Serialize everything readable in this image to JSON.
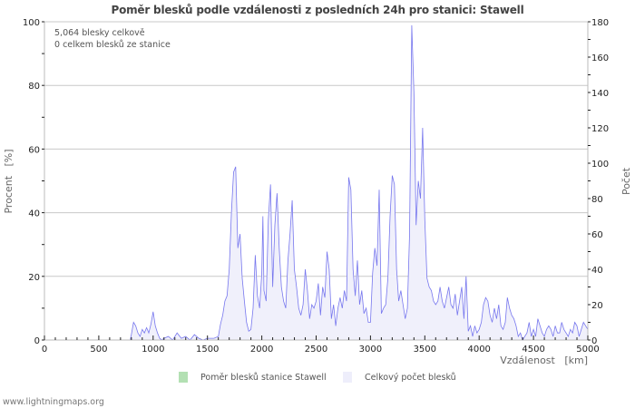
{
  "title": "Poměr blesků podle vzdálenosti z posledních 24h pro stanici: Stawell",
  "info": {
    "line1": "5,064 blesky celkově",
    "line2": "0 celkem blesků ze stanice"
  },
  "legend": {
    "ratio_label": "Poměr blesků stanice Stawell",
    "ratio_color": "#b3e0b3",
    "total_label": "Celkový počet blesků",
    "total_color": "#eeeefb"
  },
  "footer": "www.lightningmaps.org",
  "colors": {
    "line": "#7777ee",
    "fill": "#f0f0fb",
    "grid": "#c8c8c8",
    "axis": "#bbbbbb"
  },
  "chart_data": {
    "type": "area",
    "title": "Poměr blesků podle vzdálenosti z posledních 24h pro stanici: Stawell",
    "xlabel": "Vzdálenost   [km]",
    "ylabel_left": "Procent   [%]",
    "ylabel_right": "Počet",
    "xlim": [
      0,
      5000
    ],
    "ylim_left": [
      0,
      100
    ],
    "ylim_right": [
      0,
      180
    ],
    "x_ticks": [
      0,
      500,
      1000,
      1500,
      2000,
      2500,
      3000,
      3500,
      4000,
      4500,
      5000
    ],
    "y_ticks_left": [
      0,
      20,
      40,
      60,
      80,
      100
    ],
    "y_ticks_right": [
      0,
      20,
      40,
      60,
      80,
      100,
      120,
      140,
      160,
      180
    ],
    "grid": true,
    "legend_position": "bottom",
    "series": [
      {
        "name": "Poměr blesků stanice Stawell",
        "axis": "left",
        "note": "0 strikes from station; ratio 0 across all distances",
        "x": [
          0,
          5000
        ],
        "values": [
          0,
          0
        ]
      },
      {
        "name": "Celkový počet blesků",
        "axis": "right",
        "x": [
          0,
          790,
          800,
          820,
          840,
          860,
          880,
          900,
          920,
          940,
          960,
          980,
          1000,
          1020,
          1040,
          1060,
          1080,
          1100,
          1140,
          1180,
          1220,
          1260,
          1300,
          1340,
          1380,
          1420,
          1460,
          1500,
          1560,
          1600,
          1620,
          1640,
          1660,
          1680,
          1700,
          1720,
          1740,
          1760,
          1780,
          1800,
          1820,
          1840,
          1860,
          1880,
          1900,
          1920,
          1940,
          1960,
          1980,
          2000,
          2010,
          2020,
          2040,
          2060,
          2080,
          2100,
          2120,
          2140,
          2160,
          2180,
          2200,
          2220,
          2240,
          2260,
          2280,
          2300,
          2320,
          2340,
          2360,
          2380,
          2400,
          2420,
          2440,
          2460,
          2480,
          2500,
          2520,
          2540,
          2560,
          2580,
          2600,
          2620,
          2640,
          2660,
          2680,
          2700,
          2720,
          2740,
          2760,
          2780,
          2800,
          2820,
          2840,
          2860,
          2880,
          2900,
          2920,
          2940,
          2960,
          2980,
          3000,
          3020,
          3040,
          3060,
          3080,
          3100,
          3120,
          3140,
          3160,
          3180,
          3200,
          3220,
          3240,
          3260,
          3280,
          3300,
          3320,
          3340,
          3360,
          3380,
          3400,
          3420,
          3440,
          3460,
          3480,
          3500,
          3520,
          3540,
          3560,
          3580,
          3600,
          3620,
          3640,
          3660,
          3680,
          3700,
          3720,
          3740,
          3760,
          3780,
          3800,
          3820,
          3840,
          3860,
          3880,
          3900,
          3920,
          3940,
          3960,
          3980,
          4000,
          4020,
          4040,
          4060,
          4080,
          4100,
          4120,
          4140,
          4160,
          4180,
          4200,
          4220,
          4240,
          4260,
          4280,
          4300,
          4320,
          4340,
          4360,
          4380,
          4400,
          4420,
          4440,
          4460,
          4480,
          4500,
          4520,
          4540,
          4560,
          4580,
          4600,
          4620,
          4640,
          4660,
          4680,
          4700,
          4720,
          4740,
          4760,
          4780,
          4800,
          4820,
          4840,
          4860,
          4880,
          4900,
          4920,
          4940,
          4960,
          4980,
          5000
        ],
        "values": [
          0,
          0,
          3,
          10,
          8,
          4,
          2,
          6,
          4,
          7,
          4,
          9,
          16,
          8,
          4,
          1,
          0,
          1,
          2,
          0,
          4,
          1,
          2,
          0,
          3,
          1,
          0,
          1,
          1,
          2,
          9,
          14,
          22,
          25,
          40,
          72,
          95,
          98,
          52,
          60,
          35,
          22,
          10,
          5,
          6,
          18,
          48,
          25,
          18,
          38,
          70,
          28,
          22,
          68,
          88,
          30,
          65,
          83,
          52,
          30,
          22,
          18,
          45,
          60,
          79,
          40,
          30,
          18,
          14,
          20,
          40,
          28,
          12,
          20,
          18,
          22,
          32,
          14,
          30,
          24,
          50,
          40,
          12,
          20,
          8,
          18,
          24,
          18,
          28,
          22,
          92,
          85,
          40,
          25,
          45,
          20,
          28,
          15,
          18,
          10,
          10,
          38,
          52,
          42,
          85,
          15,
          18,
          20,
          35,
          70,
          93,
          88,
          40,
          22,
          28,
          20,
          12,
          18,
          60,
          178,
          140,
          65,
          90,
          80,
          120,
          68,
          35,
          30,
          28,
          22,
          20,
          22,
          30,
          22,
          18,
          24,
          30,
          20,
          18,
          26,
          14,
          22,
          30,
          12,
          36,
          5,
          8,
          2,
          8,
          4,
          6,
          10,
          20,
          24,
          22,
          14,
          10,
          18,
          12,
          20,
          8,
          6,
          10,
          24,
          18,
          14,
          12,
          8,
          2,
          4,
          0,
          2,
          4,
          10,
          2,
          6,
          2,
          12,
          8,
          4,
          2,
          6,
          8,
          6,
          2,
          8,
          4,
          4,
          10,
          6,
          4,
          2,
          6,
          4,
          10,
          8,
          2,
          6,
          10,
          8,
          6
        ]
      }
    ]
  }
}
